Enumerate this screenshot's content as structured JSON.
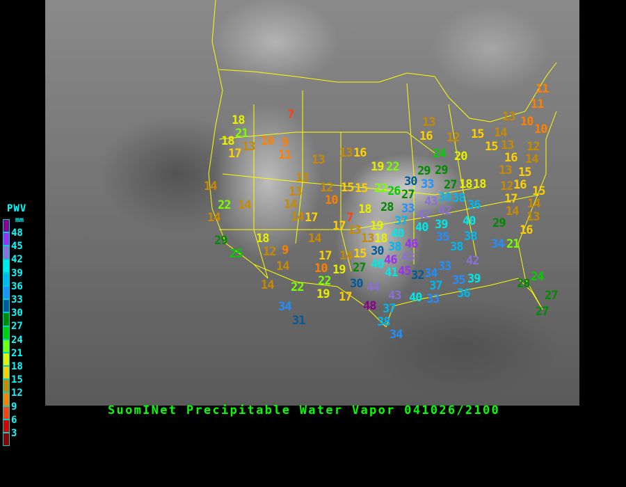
{
  "title": "SuomINet Precipitable Water Vapor 041026/2100",
  "legend": {
    "title": "PWV",
    "unit": "mm",
    "labels": [
      "48",
      "45",
      "42",
      "39",
      "36",
      "33",
      "30",
      "27",
      "24",
      "21",
      "18",
      "15",
      "12",
      "9",
      "6",
      "3"
    ],
    "colors": [
      "#8b008b",
      "#9a30f0",
      "#8a70d8",
      "#00e8e8",
      "#00b8f0",
      "#2090ff",
      "#005a9a",
      "#008a00",
      "#00d000",
      "#78ff00",
      "#e8f000",
      "#ffd000",
      "#c88a00",
      "#ff8000",
      "#ff4010",
      "#d80000",
      "#900000"
    ]
  },
  "stations": [
    18,
    21,
    18,
    13,
    10,
    9,
    17,
    11,
    7,
    13,
    13,
    16,
    14,
    13,
    12,
    15,
    13,
    10,
    14,
    22,
    14,
    14,
    14,
    17,
    17,
    13,
    29,
    18,
    14,
    25,
    12,
    9,
    17,
    14,
    15,
    10,
    14,
    19,
    27,
    22,
    14,
    22,
    19,
    30,
    17,
    19,
    22,
    29,
    29,
    30,
    33,
    27,
    18,
    22,
    26,
    27,
    15,
    38,
    38,
    36,
    43,
    42,
    42,
    18,
    28,
    33,
    37,
    40,
    39,
    40,
    19,
    40,
    7,
    13,
    18,
    38,
    35,
    38,
    38,
    30,
    46,
    46,
    34,
    40,
    43,
    42,
    41,
    45,
    32,
    33,
    34,
    37,
    35,
    39,
    36,
    33,
    44,
    43,
    40,
    48,
    37,
    38,
    34,
    34,
    31,
    11,
    11,
    13,
    10,
    10,
    13,
    16,
    12,
    15,
    14,
    13,
    12,
    14,
    15,
    24,
    20,
    16,
    13,
    15,
    16,
    18,
    12,
    17,
    15,
    14,
    14,
    13,
    16,
    29,
    21,
    24,
    28,
    27,
    27
  ]
}
